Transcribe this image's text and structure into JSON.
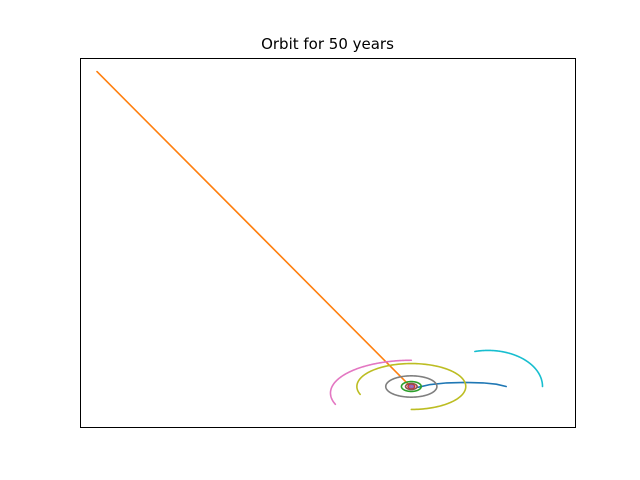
{
  "chart_data": {
    "type": "line",
    "title": "Orbit for 50 years",
    "xlabel": "",
    "ylabel": "",
    "xlim": [
      -20,
      10
    ],
    "ylim": [
      -2.5,
      20
    ],
    "axes_visible": false,
    "grid": false,
    "legend": "none",
    "series": [
      {
        "color": "#1f77b4",
        "kind": "trail",
        "x": [
          0.45,
          1.2,
          2.2,
          3.3,
          4.4,
          5.2,
          5.8
        ],
        "y": [
          -0.05,
          0.12,
          0.22,
          0.25,
          0.22,
          0.14,
          0.0
        ]
      },
      {
        "color": "#ff7f0e",
        "kind": "trail",
        "x": [
          0.05,
          -19.0
        ],
        "y": [
          -0.05,
          19.2
        ]
      },
      {
        "color": "#2ca02c",
        "kind": "ellipse",
        "center": [
          0.05,
          0.0
        ],
        "radii": [
          0.6,
          0.3
        ],
        "arc_deg": [
          0,
          360
        ]
      },
      {
        "color": "#d62728",
        "kind": "ellipse",
        "center": [
          0.05,
          0.0
        ],
        "radii": [
          0.2,
          0.1
        ],
        "arc_deg": [
          0,
          360
        ]
      },
      {
        "color": "#9467bd",
        "kind": "ellipse",
        "center": [
          0.05,
          0.0
        ],
        "radii": [
          0.12,
          0.06
        ],
        "arc_deg": [
          0,
          360
        ]
      },
      {
        "color": "#8c564b",
        "kind": "ellipse",
        "center": [
          0.05,
          0.0
        ],
        "radii": [
          0.35,
          0.18
        ],
        "arc_deg": [
          0,
          360
        ]
      },
      {
        "color": "#e377c2",
        "kind": "ellipse",
        "center": [
          0.05,
          -0.4
        ],
        "radii": [
          4.9,
          2.0
        ],
        "arc_deg": [
          90,
          200
        ]
      },
      {
        "color": "#7f7f7f",
        "kind": "ellipse",
        "center": [
          0.05,
          0.0
        ],
        "radii": [
          1.55,
          0.65
        ],
        "arc_deg": [
          0,
          360
        ]
      },
      {
        "color": "#bcbd22",
        "kind": "ellipse",
        "center": [
          0.05,
          0.0
        ],
        "radii": [
          3.3,
          1.4
        ],
        "arc_deg": [
          -90,
          200
        ]
      },
      {
        "color": "#17becf",
        "kind": "ellipse",
        "center": [
          4.7,
          0.0
        ],
        "radii": [
          3.3,
          2.2
        ],
        "arc_deg": [
          0,
          104
        ]
      }
    ]
  }
}
